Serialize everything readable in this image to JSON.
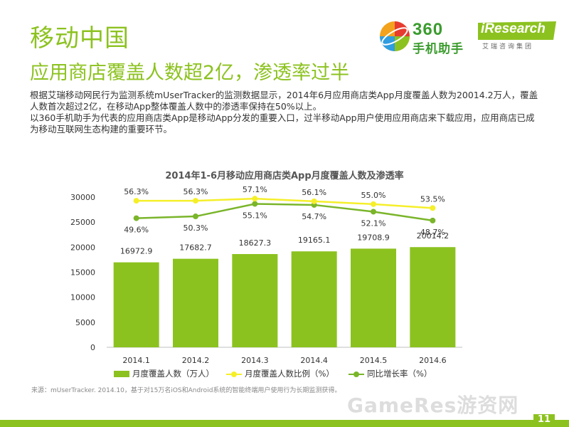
{
  "header": {
    "title": "移动中国",
    "subtitle": "应用商店覆盖人数超2亿，渗透率过半"
  },
  "logos": {
    "brand_360_line1": "360",
    "brand_360_line2": "手机助手",
    "iresearch_line1": "iResearch",
    "iresearch_line2": "艾瑞咨询集团"
  },
  "body": {
    "paragraph1": "根据艾瑞移动网民行为监测系统mUserTracker的监测数据显示，2014年6月应用商店类App月度覆盖人数为20014.2万人，覆盖人数首次超过2亿，在移动App整体覆盖人数中的渗透率保持在50%以上。",
    "paragraph2": "以360手机助手为代表的应用商店类App是移动App分发的重要入口，过半移动App用户使用应用商店来下载应用，应用商店已成为移动互联网生态构建的重要环节。"
  },
  "colors": {
    "accent": "#8cc21f",
    "bar": "#8cc21f",
    "ratio_line": "#f5ef2a",
    "growth_line": "#7ab52a",
    "text": "#333333"
  },
  "chart_data": {
    "type": "bar",
    "title": "2014年1-6月移动应用商店类App月度覆盖人数及渗透率",
    "categories": [
      "2014.1",
      "2014.2",
      "2014.3",
      "2014.4",
      "2014.5",
      "2014.6"
    ],
    "series": [
      {
        "name": "月度覆盖人数（万人）",
        "type": "bar",
        "values": [
          16972.9,
          17682.7,
          18627.3,
          19165.1,
          19708.9,
          20014.2
        ],
        "labels": [
          "16972.9",
          "17682.7",
          "18627.3",
          "19165.1",
          "19708.9",
          "20014.2"
        ]
      },
      {
        "name": "月度覆盖人数比例（%）",
        "type": "line",
        "values": [
          56.3,
          56.3,
          57.1,
          56.1,
          55.0,
          53.5
        ],
        "labels": [
          "56.3%",
          "56.3%",
          "57.1%",
          "56.1%",
          "55.0%",
          "53.5%"
        ]
      },
      {
        "name": "同比增长率（%）",
        "type": "line",
        "values": [
          49.6,
          50.3,
          55.1,
          54.7,
          52.1,
          48.7
        ],
        "labels": [
          "49.6%",
          "50.3%",
          "55.1%",
          "54.7%",
          "52.1%",
          "48.7%"
        ]
      }
    ],
    "ylim": [
      0,
      30000
    ],
    "yticks": [
      "30000",
      "25000",
      "20000",
      "15000",
      "10000",
      "5000",
      "0"
    ],
    "ytick_values": [
      30000,
      25000,
      20000,
      15000,
      10000,
      5000,
      0
    ],
    "grid": false,
    "legend_position": "bottom"
  },
  "footer": {
    "source": "来源：mUserTracker. 2014.10，基于对15万名iOS和Android系统的智能终端用户使用行为长期监测获得。",
    "watermark": "GameRes游资网",
    "page_number": "11"
  }
}
